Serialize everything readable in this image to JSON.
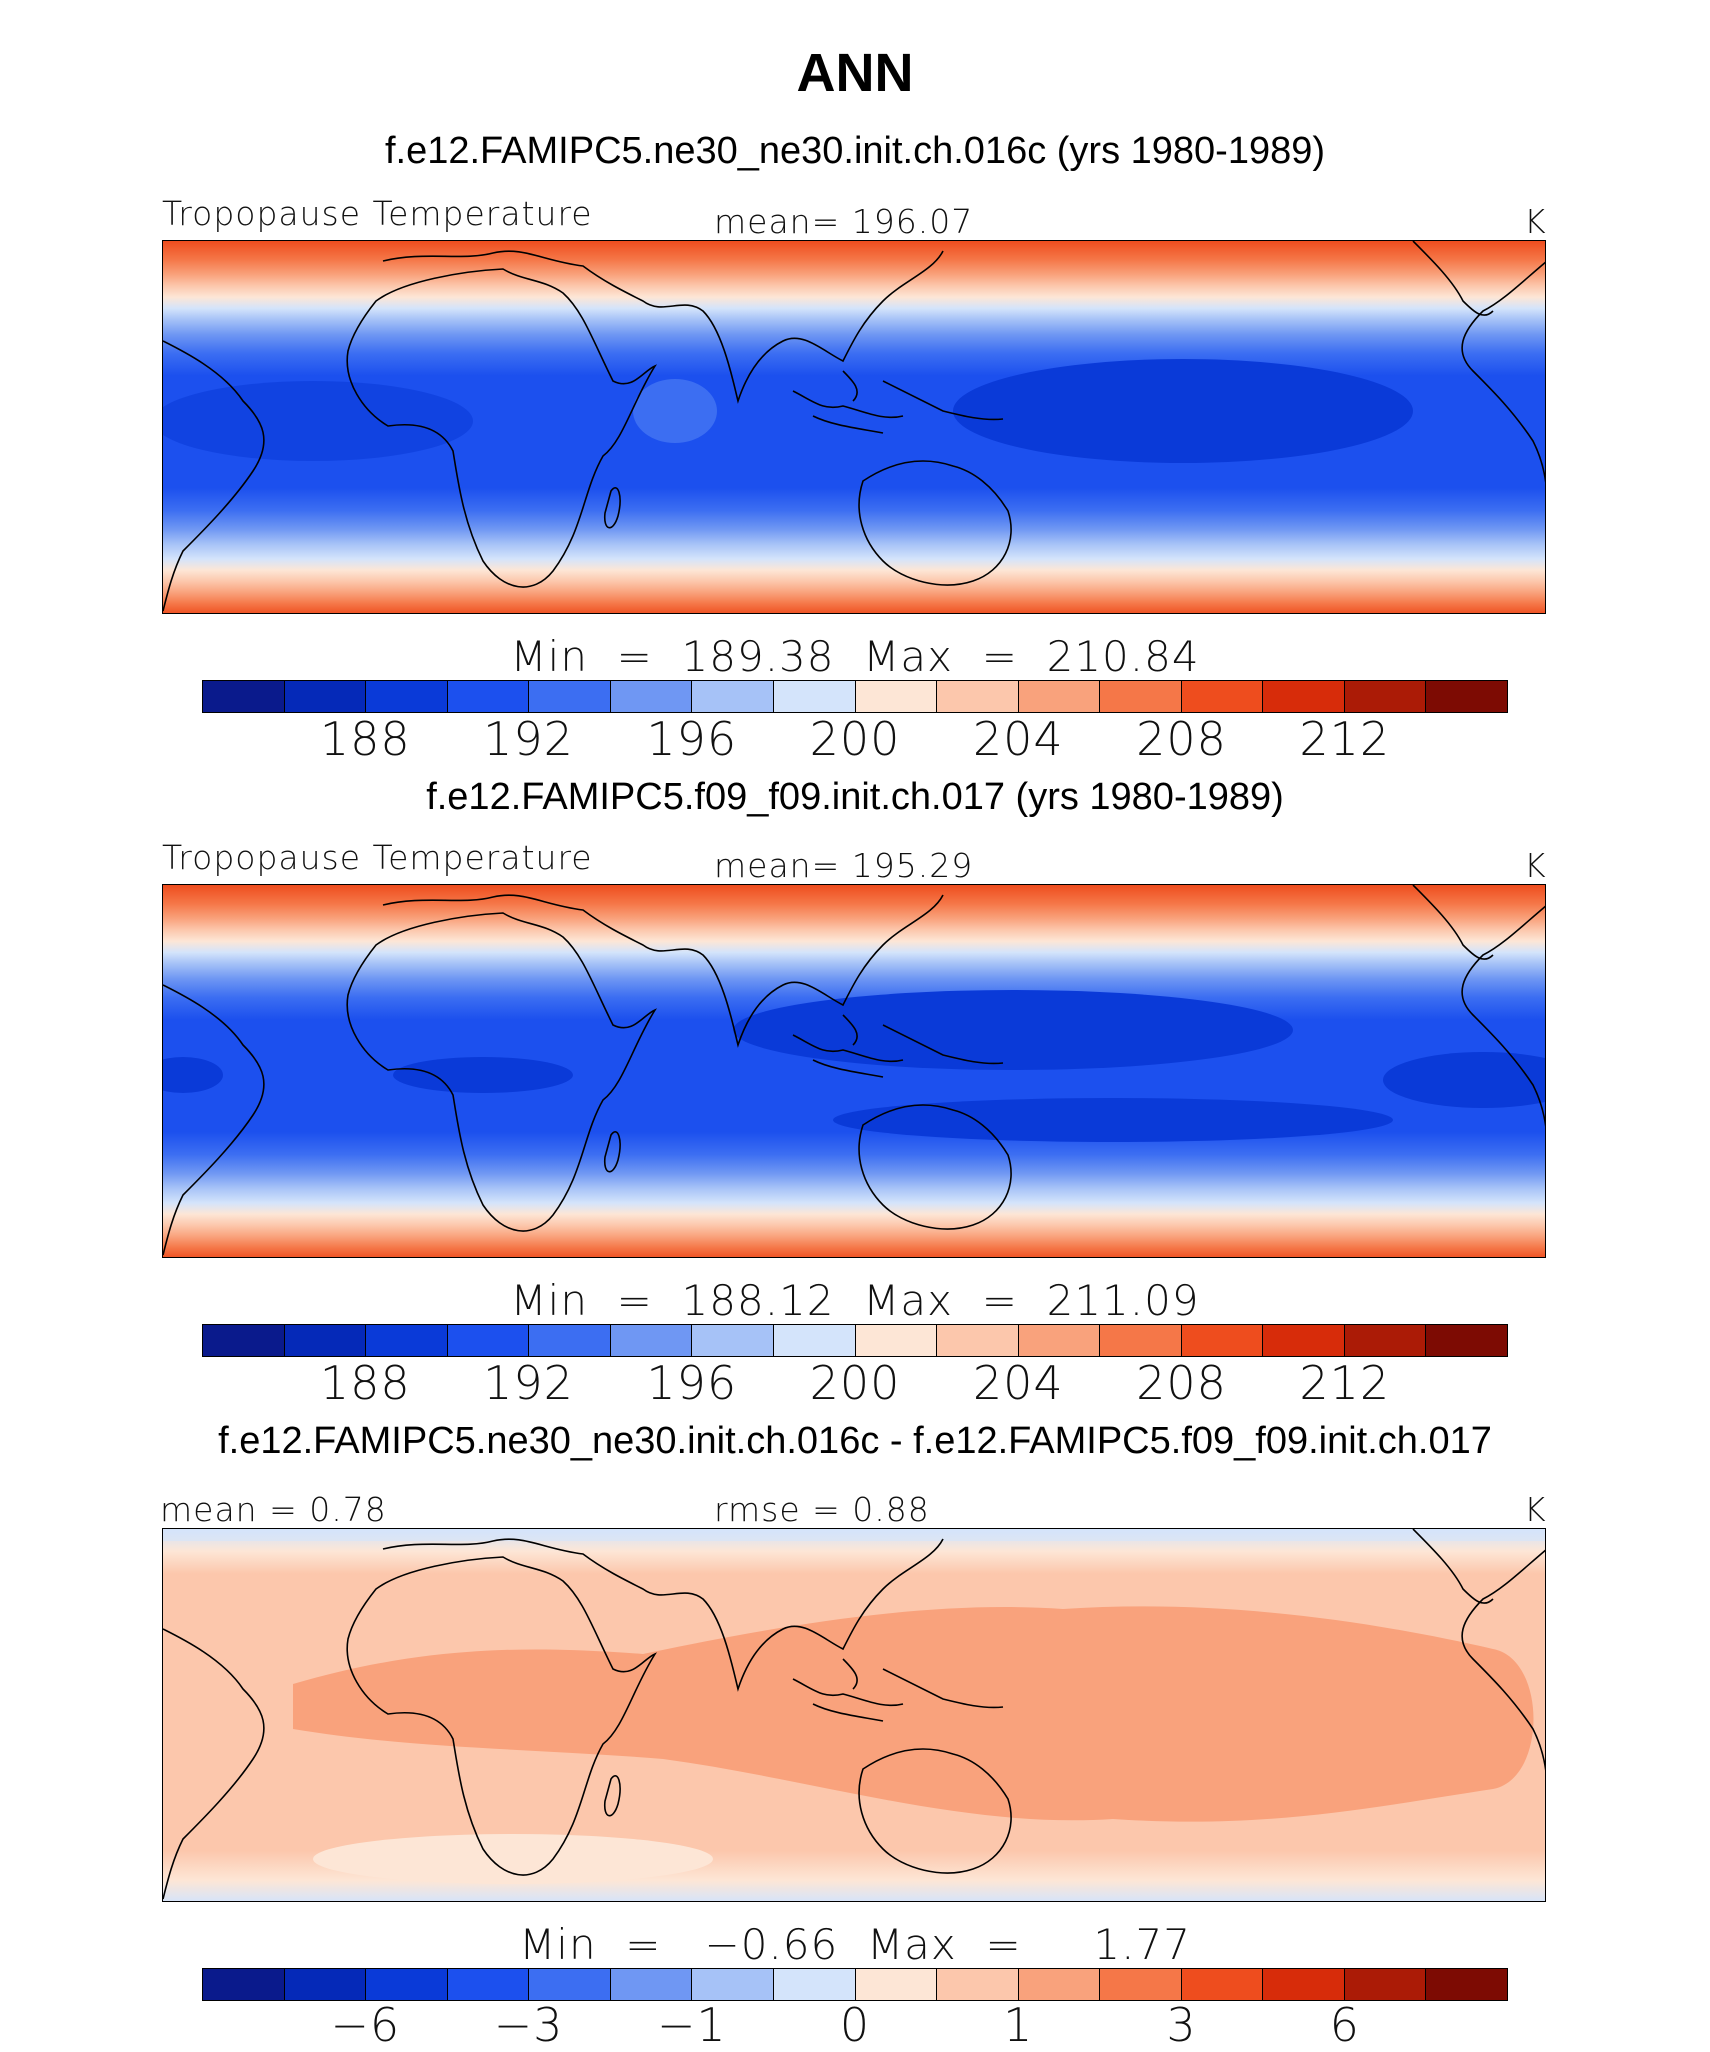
{
  "title": "ANN",
  "panels": [
    {
      "case_title": "f.e12.FAMIPC5.ne30_ne30.init.ch.016c (yrs 1980-1989)",
      "variable": "Tropopause Temperature",
      "stat": "mean=  196.07",
      "units": "K",
      "minmax": "Min  =  189.38  Max  =  210.84"
    },
    {
      "case_title": "f.e12.FAMIPC5.f09_f09.init.ch.017 (yrs 1980-1989)",
      "variable": "Tropopause Temperature",
      "stat": "mean=  195.29",
      "units": "K",
      "minmax": "Min  =  188.12  Max  =  211.09"
    },
    {
      "case_title": "f.e12.FAMIPC5.ne30_ne30.init.ch.016c - f.e12.FAMIPC5.f09_f09.init.ch.017",
      "stat_left": "mean =    0.78",
      "stat_mid": "rmse =    0.88",
      "units": "K",
      "minmax": "Min  =   −0.66  Max  =     1.77"
    }
  ],
  "colorbar_abs": {
    "ticks": [
      "188",
      "192",
      "196",
      "200",
      "204",
      "208",
      "212"
    ],
    "colors": [
      "#0a1a8c",
      "#0529b8",
      "#0a3ad8",
      "#1c50ee",
      "#3c6ef2",
      "#6f97f3",
      "#a6c2f7",
      "#d4e4fb",
      "#fde6d6",
      "#fcc7ac",
      "#f9a27c",
      "#f57748",
      "#ee4d1e",
      "#d72c0a",
      "#ab1b06",
      "#7d0b03"
    ]
  },
  "colorbar_diff": {
    "ticks": [
      "−6",
      "−3",
      "−1",
      "0",
      "1",
      "3",
      "6"
    ],
    "colors": [
      "#0a1a8c",
      "#0529b8",
      "#0a3ad8",
      "#1c50ee",
      "#3c6ef2",
      "#6f97f3",
      "#a6c2f7",
      "#d4e4fb",
      "#fde6d6",
      "#fcc7ac",
      "#f9a27c",
      "#f57748",
      "#ee4d1e",
      "#d72c0a",
      "#ab1b06",
      "#7d0b03"
    ]
  }
}
